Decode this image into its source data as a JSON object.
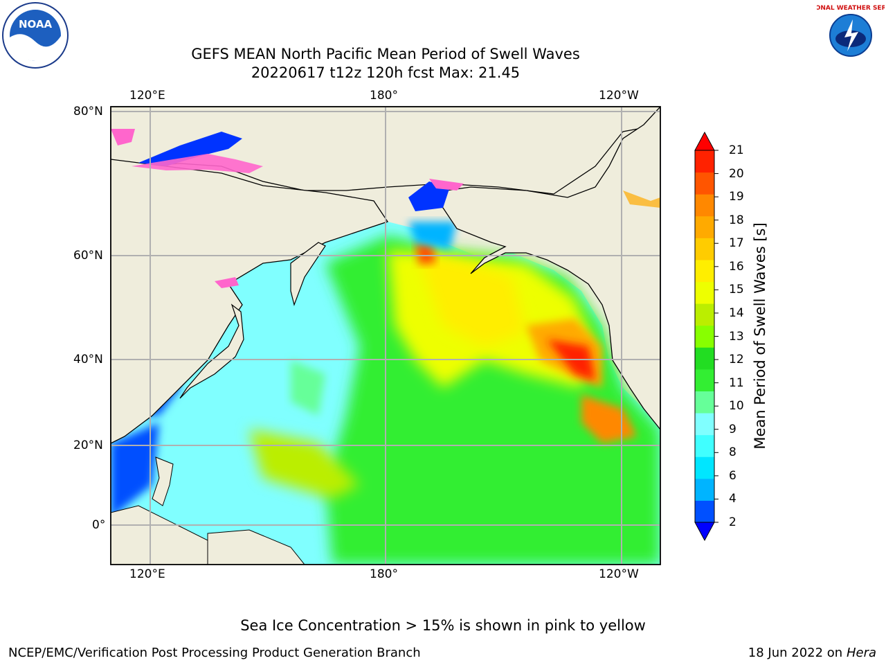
{
  "title": {
    "line1": "GEFS MEAN North Pacific Mean Period of Swell Waves",
    "line2": "20220617 t12z 120h fcst   Max: 21.45"
  },
  "map": {
    "lon_labels_top": [
      "120°E",
      "180°",
      "120°W"
    ],
    "lon_labels_bottom": [
      "120°E",
      "180°",
      "120°W"
    ],
    "lat_labels": [
      "80°N",
      "60°N",
      "40°N",
      "20°N",
      "0°"
    ],
    "colors": {
      "land": "#efeddc",
      "gridline": "#b0b0b0",
      "coast": "#000000",
      "sea_ice": "#ff66cc"
    }
  },
  "colorbar": {
    "label": "Mean Period of Swell Waves [s]",
    "ticks": [
      "2",
      "4",
      "6",
      "8",
      "9",
      "10",
      "11",
      "12",
      "13",
      "14",
      "15",
      "16",
      "17",
      "18",
      "19",
      "20",
      "21"
    ],
    "colors": [
      "#0050ff",
      "#00b4ff",
      "#00e6ff",
      "#40ffff",
      "#80ffff",
      "#66ff99",
      "#33ee33",
      "#22dd22",
      "#88ff00",
      "#bbee00",
      "#eeff00",
      "#ffee00",
      "#ffcc00",
      "#ffaa00",
      "#ff8800",
      "#ff5500",
      "#ff2200"
    ],
    "under_color": "#0000ff",
    "over_color": "#ff0000"
  },
  "footnote": "Sea Ice Concentration > 15% is shown in pink to yellow",
  "credit_left": "NCEP/EMC/Verification Post Processing Product Generation Branch",
  "credit_right_date": "18 Jun 2022 on",
  "credit_right_host": "Hera",
  "logos": {
    "noaa_text": "NOAA",
    "nws_text": "NATIONAL WEATHER SERVICE"
  }
}
